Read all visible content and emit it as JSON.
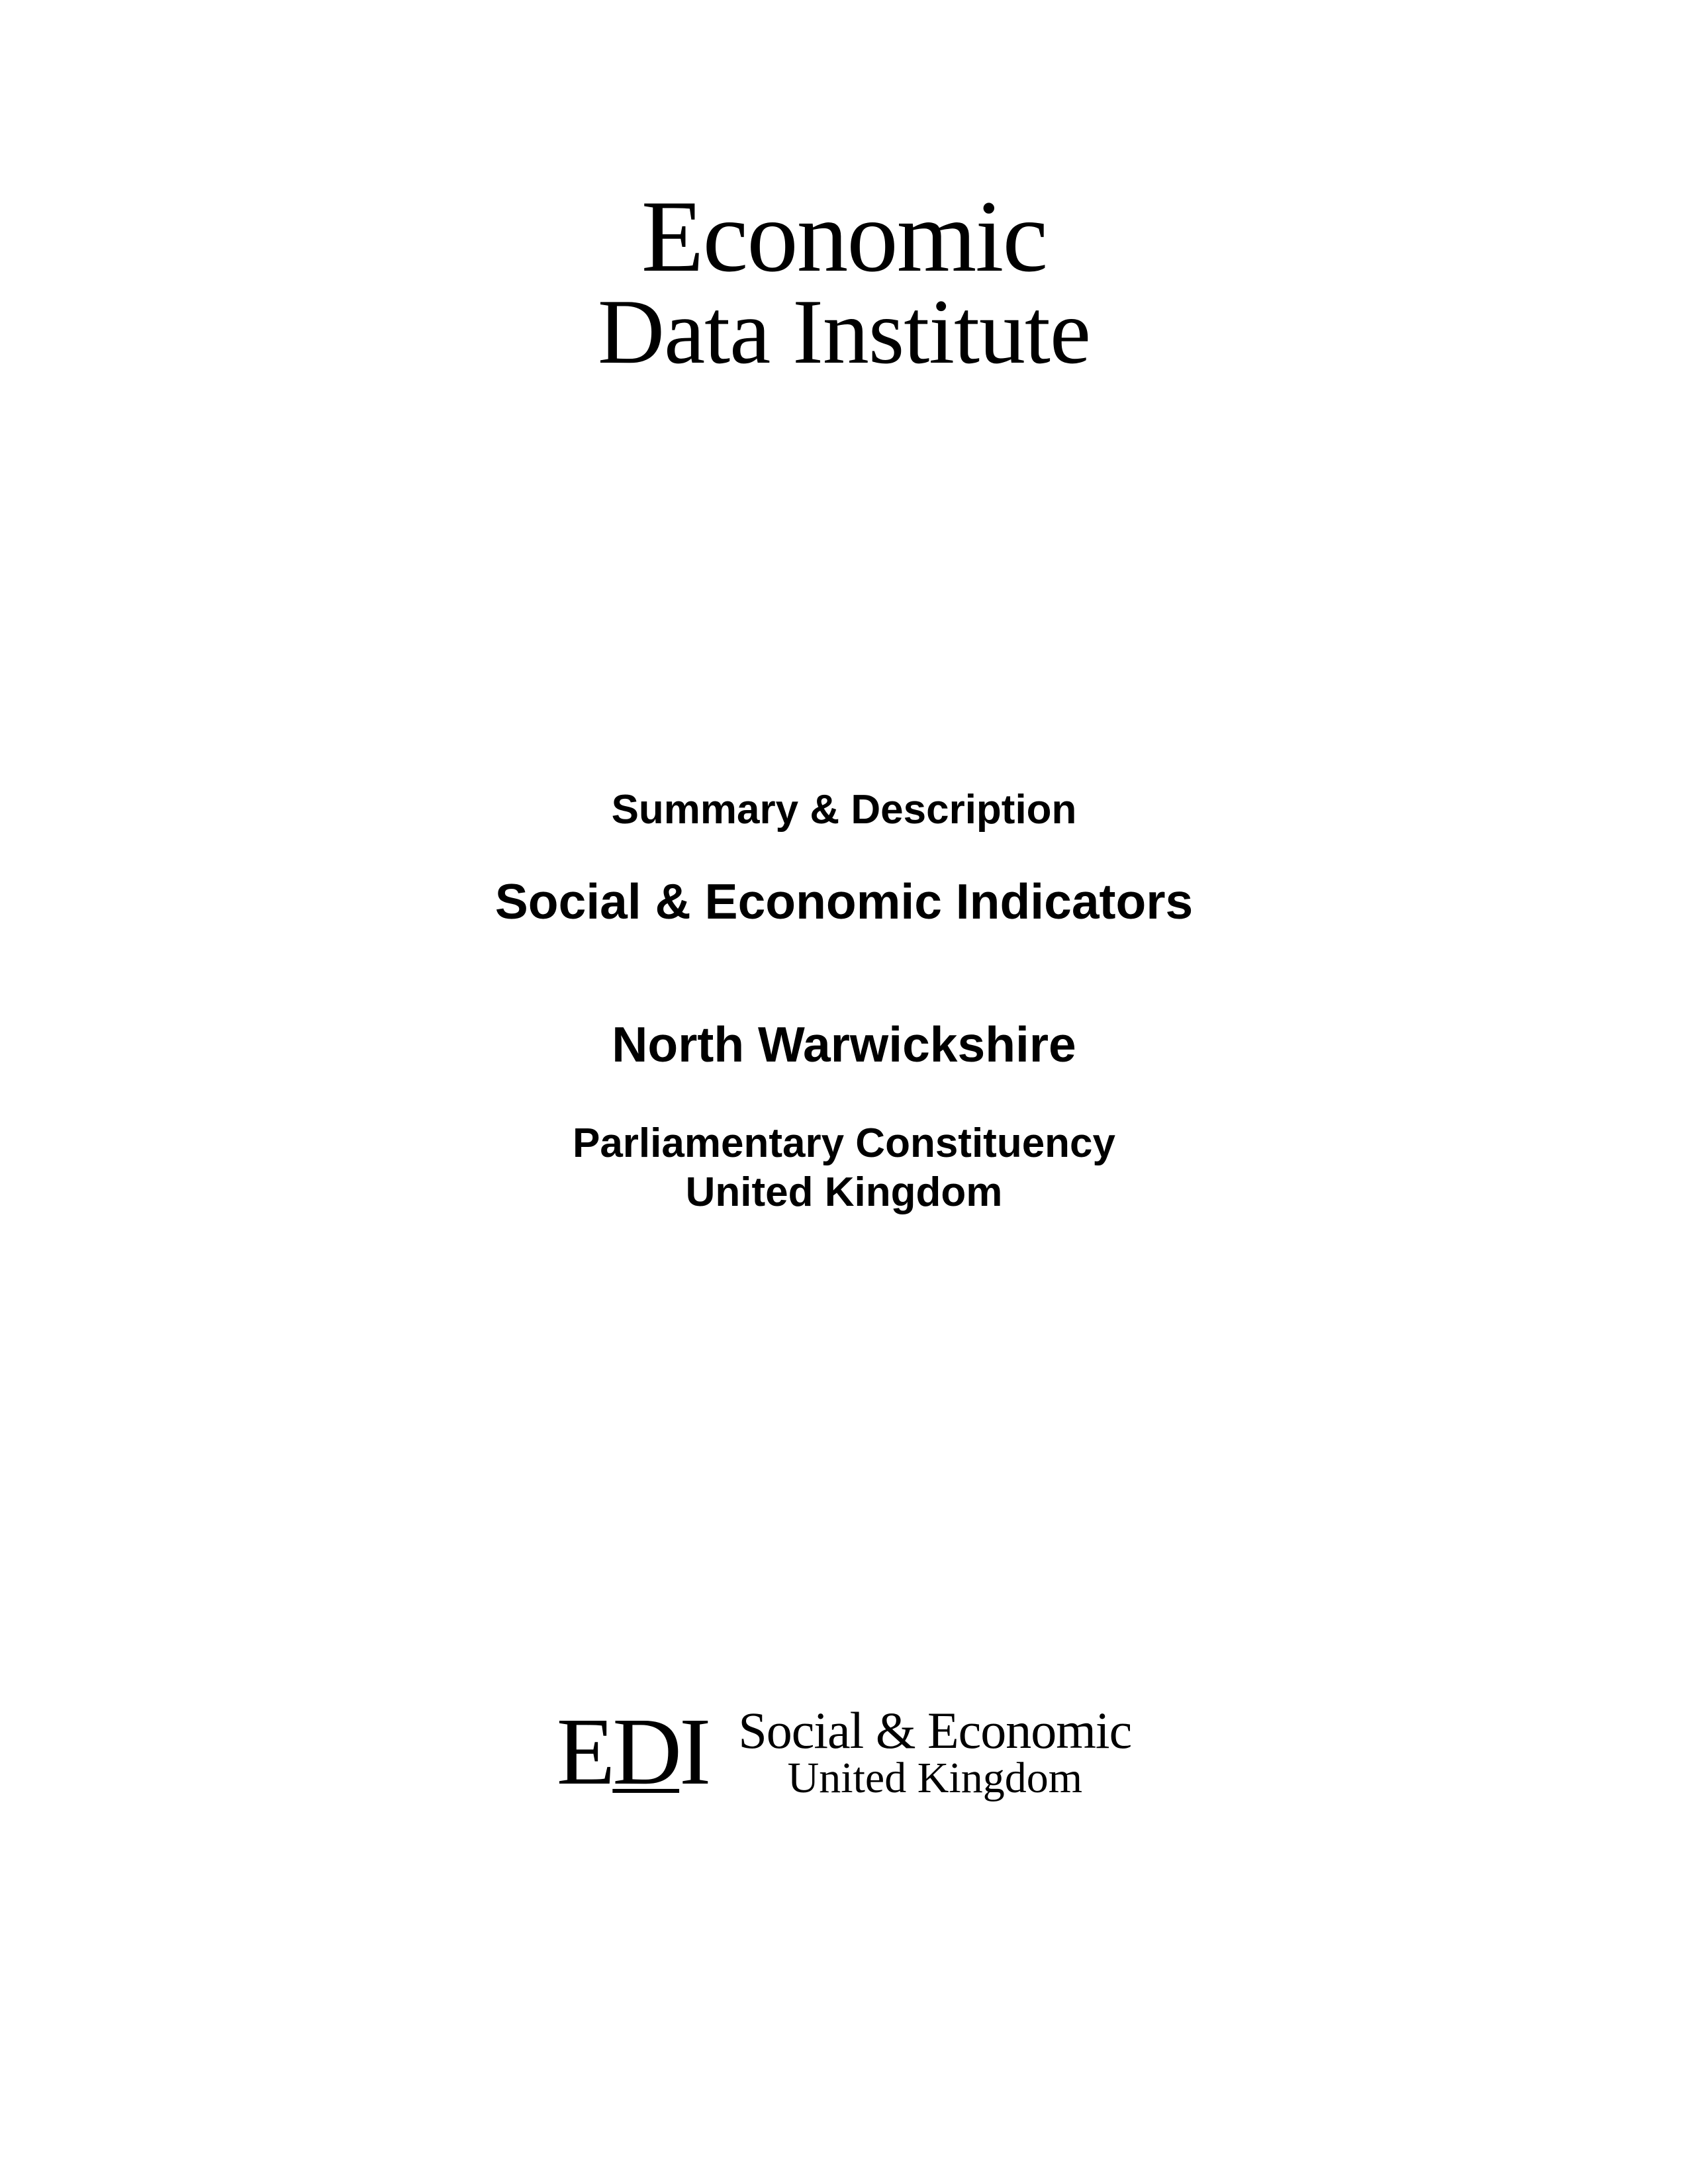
{
  "header": {
    "logo_line1": "Economic",
    "logo_line2": "Data Institute"
  },
  "content": {
    "summary": "Summary & Description",
    "title": "Social & Economic Indicators",
    "region": "North Warwickshire",
    "subtitle_line1": "Parliamentary Constituency",
    "subtitle_line2": "United Kingdom"
  },
  "footer": {
    "abbreviation_e": "E",
    "abbreviation_d": "D",
    "abbreviation_i": "I",
    "text_line1": "Social & Economic",
    "text_line2": "United Kingdom"
  },
  "colors": {
    "background": "#ffffff",
    "text": "#000000"
  },
  "typography": {
    "header_font": "Georgia, Times New Roman, serif",
    "content_font": "Arial, Helvetica, sans-serif",
    "header_line1_size": 155,
    "header_line2_size": 140,
    "summary_size": 62,
    "title_size": 75,
    "region_size": 75,
    "subtitle_size": 62,
    "footer_edi_size": 145,
    "footer_line1_size": 78,
    "footer_line2_size": 66
  }
}
